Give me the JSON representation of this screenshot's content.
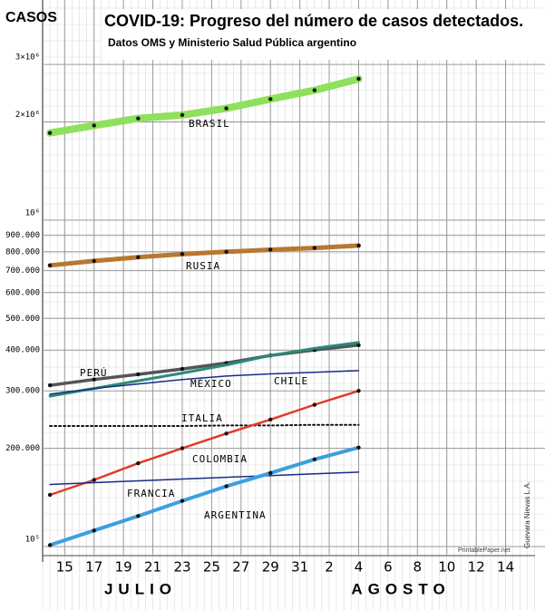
{
  "chart_data": {
    "type": "line",
    "title": "COVID-19: Progreso del número de casos detectados.",
    "subtitle": "Datos OMS y Ministerio Salud Pública argentino",
    "y_label": "CASOS",
    "month_labels": [
      "JULIO",
      "AGOSTO"
    ],
    "credits": [
      "PrintablePaper.net",
      "Guevara Nievas L.A."
    ],
    "log_scale": true,
    "grid": true,
    "xlim": [
      13.5,
      47
    ],
    "ylim": [
      100000,
      3200000
    ],
    "xticks": [
      15,
      17,
      19,
      21,
      23,
      25,
      27,
      29,
      31,
      {
        "value": 33,
        "label": "2"
      },
      {
        "value": 35,
        "label": "4"
      },
      {
        "value": 37,
        "label": "6"
      },
      {
        "value": 39,
        "label": "8"
      },
      {
        "value": 41,
        "label": "10"
      },
      {
        "value": 43,
        "label": "12"
      },
      {
        "value": 45,
        "label": "14"
      }
    ],
    "yticks": [
      {
        "value": 100000,
        "label": "10⁵"
      },
      {
        "value": 200000,
        "label": "200.000"
      },
      {
        "value": 300000,
        "label": "300.000"
      },
      {
        "value": 400000,
        "label": "400.000"
      },
      {
        "value": 500000,
        "label": "500.000"
      },
      {
        "value": 600000,
        "label": "600.000"
      },
      {
        "value": 700000,
        "label": "700.000"
      },
      {
        "value": 800000,
        "label": "800.000"
      },
      {
        "value": 900000,
        "label": "900.000"
      },
      {
        "value": 1000000,
        "label": "10⁶"
      },
      {
        "value": 2000000,
        "label": "2×10⁶"
      },
      {
        "value": 3000000,
        "label": "3×10⁶"
      }
    ],
    "x": [
      14,
      17,
      20,
      23,
      26,
      29,
      32,
      35
    ],
    "series": [
      {
        "name": "BRASIL",
        "color": "#8fe05c",
        "width": 8,
        "markers": true,
        "values": [
          1850000,
          1950000,
          2050000,
          2100000,
          2200000,
          2350000,
          2500000,
          2710000
        ]
      },
      {
        "name": "RUSIA",
        "color": "#b87830",
        "width": 5,
        "markers": true,
        "values": [
          727000,
          750000,
          770000,
          787000,
          800000,
          812000,
          822000,
          836000
        ]
      },
      {
        "name": "PERÚ",
        "color": "#555555",
        "width": 3.5,
        "markers": true,
        "values": [
          312000,
          325000,
          337000,
          350000,
          365000,
          385000,
          400000,
          414000
        ]
      },
      {
        "name": "MÉXICO",
        "color": "#2a8a7a",
        "width": 3,
        "markers": false,
        "values": [
          289000,
          305000,
          322000,
          340000,
          360000,
          385000,
          405000,
          422000
        ]
      },
      {
        "name": "CHILE",
        "color": "#1a2a8a",
        "width": 1.5,
        "markers": false,
        "values": [
          293000,
          305000,
          315000,
          325000,
          333000,
          338000,
          342000,
          346000
        ]
      },
      {
        "name": "ITALIA",
        "color": "#111111",
        "width": 2,
        "markers": false,
        "dash": true,
        "values": [
          234000,
          234000,
          234000,
          234000,
          235000,
          235000,
          236000,
          236000
        ]
      },
      {
        "name": "COLOMBIA",
        "color": "#e03a2a",
        "width": 2.5,
        "markers": true,
        "values": [
          144000,
          160000,
          180000,
          200000,
          222000,
          245000,
          272000,
          300000
        ]
      },
      {
        "name": "FRANCIA",
        "color": "#1a2a8a",
        "width": 1.5,
        "markers": false,
        "values": [
          155000,
          157000,
          159000,
          161000,
          163000,
          165000,
          167000,
          169000
        ]
      },
      {
        "name": "ARGENTINA",
        "color": "#3aa0e0",
        "width": 4,
        "markers": true,
        "values": [
          101000,
          112000,
          124000,
          138000,
          153000,
          168000,
          185000,
          201000
        ]
      }
    ]
  }
}
